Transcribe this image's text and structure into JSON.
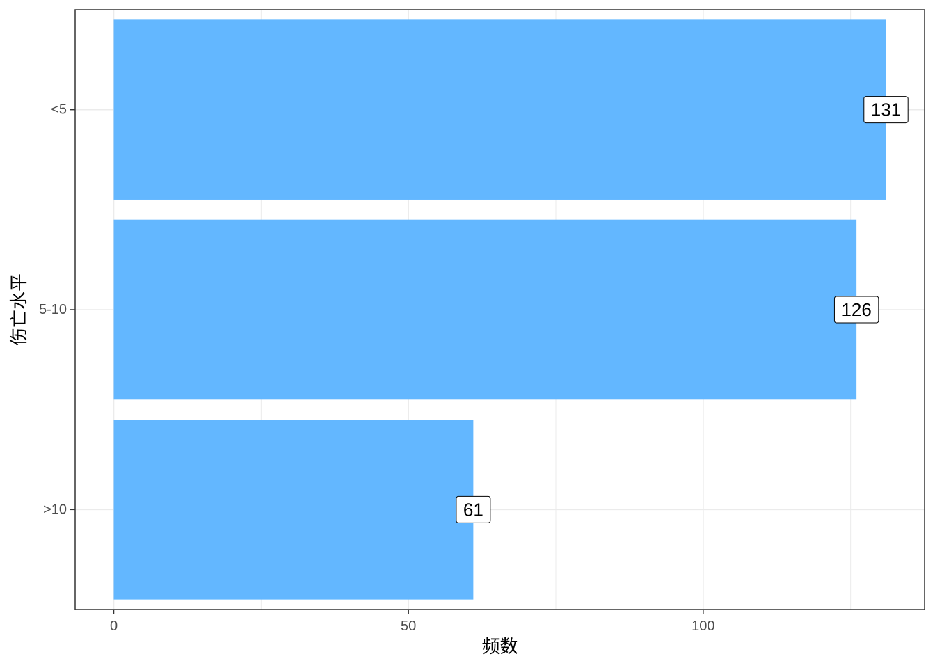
{
  "chart_data": {
    "type": "bar",
    "orientation": "horizontal",
    "categories": [
      "<5",
      "5-10",
      ">10"
    ],
    "values": [
      131,
      126,
      61
    ],
    "data_labels": [
      "131",
      "126",
      "61"
    ],
    "xlabel": "频数",
    "ylabel": "伤亡水平",
    "x_ticks": [
      0,
      50,
      100
    ],
    "x_tick_labels": [
      "0",
      "50",
      "100"
    ],
    "xlim": [
      -6.55,
      137.55
    ],
    "grid": true,
    "legend": "none",
    "colors": {
      "bar": "#63b7ff",
      "grid": "#ebebeb",
      "panel_border": "#333333",
      "label_fill": "#ffffff"
    }
  }
}
